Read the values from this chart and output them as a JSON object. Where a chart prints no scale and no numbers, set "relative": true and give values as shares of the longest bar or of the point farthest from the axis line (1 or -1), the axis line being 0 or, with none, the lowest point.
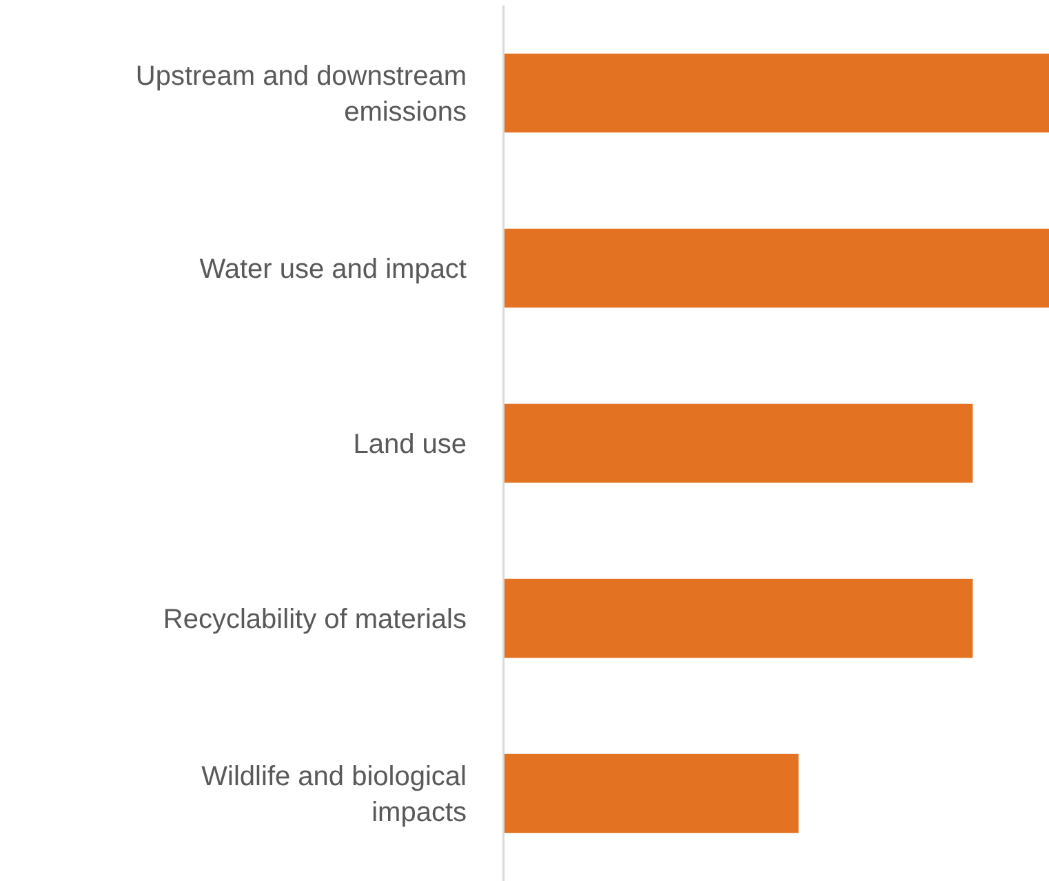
{
  "chart_data": {
    "type": "bar",
    "orientation": "horizontal",
    "relative": true,
    "categories": [
      "Upstream and downstream emissions",
      "Water use and impact",
      "Land use",
      "Recyclability of materials",
      "Wildlife and biological impacts"
    ],
    "values": [
      1,
      1,
      0.86,
      0.86,
      0.54
    ],
    "color": "#e37222"
  }
}
